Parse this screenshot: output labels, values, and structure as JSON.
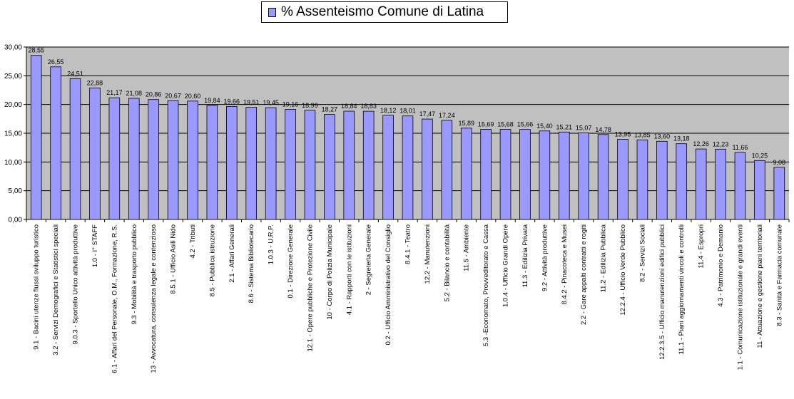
{
  "chart_data": {
    "type": "bar",
    "title": "",
    "xlabel": "",
    "ylabel": "",
    "ylim": [
      0,
      30
    ],
    "yticks": [
      "0,00",
      "5,00",
      "10,00",
      "15,00",
      "20,00",
      "25,00",
      "30,00"
    ],
    "grid": true,
    "legend_position": "top-center",
    "colors": {
      "bar": "#9999ff",
      "plot_background": "#c0c0c0",
      "gridline": "#000000"
    },
    "series": [
      {
        "name": "% Assenteismo Comune di Latina",
        "values": [
          28.55,
          26.55,
          24.51,
          22.88,
          21.17,
          21.08,
          20.86,
          20.67,
          20.6,
          19.84,
          19.66,
          19.51,
          19.45,
          19.16,
          18.99,
          18.27,
          18.84,
          18.83,
          18.12,
          18.01,
          17.47,
          17.24,
          15.89,
          15.69,
          15.68,
          15.66,
          15.4,
          15.21,
          15.07,
          14.78,
          13.95,
          13.85,
          13.6,
          13.18,
          12.26,
          12.23,
          11.66,
          10.25,
          9.08
        ],
        "value_labels": [
          "28,55",
          "26,55",
          "24,51",
          "22,88",
          "21,17",
          "21,08",
          "20,86",
          "20,67",
          "20,60",
          "19,84",
          "19,66",
          "19,51",
          "19,45",
          "19,16",
          "18,99",
          "18,27",
          "18,84",
          "18,83",
          "18,12",
          "18,01",
          "17,47",
          "17,24",
          "15,89",
          "15,69",
          "15,68",
          "15,66",
          "15,40",
          "15,21",
          "15,07",
          "14,78",
          "13,95",
          "13,85",
          "13,60",
          "13,18",
          "12,26",
          "12,23",
          "11,66",
          "10,25",
          "9,08"
        ]
      }
    ],
    "categories": [
      "9.1 - Bacini utenze flussi sviluppo turistico",
      "3.2 - Servizi Demografici e Statistici speciali",
      "9.0.3 - Sportello Unico attività produttive",
      "1.0 - I° STAFF",
      "6.1 - Affari del Personale, O.M., Formazione, R.S.",
      "9.3 - Mobilità e trasporto pubblico",
      "13 - Avvocatura, consulenza legale e contenzioso",
      "8.5.1 - Ufficio Asili Nido",
      "4.2 - Tributi",
      "8.5 - Pubblica istruzione",
      "2.1 - Affari Generali",
      "8.6 - Sistema Bibliotecario",
      "1.0.3 - U.R.P.",
      "0.1 - Direzione Generale",
      "12.1 - Opere pubbliche e Protezione Civile",
      "10 - Corpo di Polizia Municipale",
      "4.1 - Rapporti con le istituzioni",
      "2 - Segreteria Generale",
      "0.2 - Ufficio Amministrativo del Consiglio",
      "8.4.1 - Teatro",
      "12.2 - Manutenzioni",
      "5.2 - Bilancio e contabilità",
      "11.5 - Ambiente",
      "5.3 -Economato, Provveditorato e Cassa",
      "1.0.4 - Ufficio Grandi Opere",
      "11.3 - Edilizia Privata",
      "9.2 - Attività produttive",
      "8.4.2 - Pinacoteca e Musei",
      "2.2 - Gare appalti contratti e rogiti",
      "11.2 - Edilizia Pubblica",
      "12.2.4 - Ufficio Verde Pubblico",
      "8.2 - Servizi Sociali",
      "12.2.3.5 - Ufficio manutenzioni edifici pubblici",
      "11.1 - Piani aggiornamenti vincoli e controlli",
      "11.4 - Espropri",
      "4.3 - Patrimonio e Demanio",
      "1.1 - Comunicazione istituzionale e grandi eventi",
      "11 - Attuazione e gestione piani territoriali",
      "8.3 - Sanità e Farmacia comunale"
    ]
  }
}
